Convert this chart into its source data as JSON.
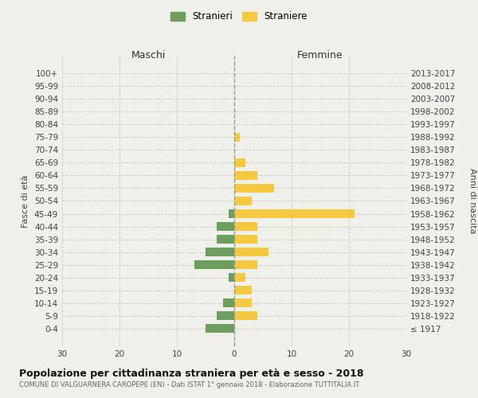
{
  "age_groups": [
    "100+",
    "95-99",
    "90-94",
    "85-89",
    "80-84",
    "75-79",
    "70-74",
    "65-69",
    "60-64",
    "55-59",
    "50-54",
    "45-49",
    "40-44",
    "35-39",
    "30-34",
    "25-29",
    "20-24",
    "15-19",
    "10-14",
    "5-9",
    "0-4"
  ],
  "birth_years": [
    "≤ 1917",
    "1918-1922",
    "1923-1927",
    "1928-1932",
    "1933-1937",
    "1938-1942",
    "1943-1947",
    "1948-1952",
    "1953-1957",
    "1958-1962",
    "1963-1967",
    "1968-1972",
    "1973-1977",
    "1978-1982",
    "1983-1987",
    "1988-1992",
    "1993-1997",
    "1998-2002",
    "2003-2007",
    "2008-2012",
    "2013-2017"
  ],
  "males": [
    0,
    0,
    0,
    0,
    0,
    0,
    0,
    0,
    0,
    0,
    0,
    1,
    3,
    3,
    5,
    7,
    1,
    0,
    2,
    3,
    5
  ],
  "females": [
    0,
    0,
    0,
    0,
    0,
    1,
    0,
    2,
    4,
    7,
    3,
    21,
    4,
    4,
    6,
    4,
    2,
    3,
    3,
    4,
    0
  ],
  "male_color": "#6d9e5e",
  "female_color": "#f5c842",
  "background_color": "#f0f0eb",
  "grid_color": "#cccccc",
  "center_line_color": "#999999",
  "title": "Popolazione per cittadinanza straniera per età e sesso - 2018",
  "subtitle": "COMUNE DI VALGUARNERA CAROPEPE (EN) - Dati ISTAT 1° gennaio 2018 - Elaborazione TUTTITALIA.IT",
  "xlabel_left": "Maschi",
  "xlabel_right": "Femmine",
  "ylabel_left": "Fasce di età",
  "ylabel_right": "Anni di nascita",
  "legend_male": "Stranieri",
  "legend_female": "Straniere",
  "xlim": 30
}
